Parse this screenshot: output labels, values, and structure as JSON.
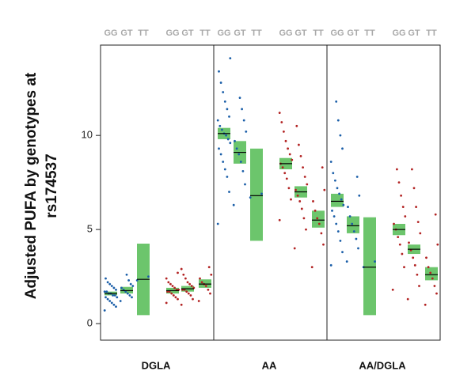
{
  "chart_data": {
    "type": "strip",
    "y_label": [
      "Adjusted PUFA by genotypes at",
      "rs174537"
    ],
    "ylim": [
      -0.88,
      14.8
    ],
    "yticks": [
      0,
      5,
      10
    ],
    "box_color": "#6cc56c",
    "panels": [
      {
        "name": "DGLA",
        "groups": [
          {
            "genotype": "GG",
            "color": "#1a5ea8",
            "mean": 1.6,
            "lower": 1.5,
            "upper": 1.7,
            "points": [
              0.7,
              0.9,
              1.0,
              1.1,
              1.2,
              1.3,
              1.4,
              1.4,
              1.5,
              1.5,
              1.6,
              1.6,
              1.7,
              1.7,
              1.8,
              1.9,
              2.0,
              2.1,
              2.2,
              2.4
            ]
          },
          {
            "genotype": "GT",
            "color": "#1a5ea8",
            "mean": 1.75,
            "lower": 1.6,
            "upper": 1.95,
            "points": [
              1.2,
              1.4,
              1.5,
              1.6,
              1.7,
              1.8,
              1.9,
              2.0,
              2.1,
              2.3,
              2.6
            ]
          },
          {
            "genotype": "TT",
            "color": "#1a5ea8",
            "mean": 2.35,
            "lower": 0.45,
            "upper": 4.25,
            "points": [
              2.3,
              2.5
            ]
          },
          {
            "genotype": "GG",
            "color": "#b22222",
            "mean": 1.75,
            "lower": 1.6,
            "upper": 1.9,
            "points": [
              1.1,
              1.3,
              1.4,
              1.5,
              1.6,
              1.7,
              1.7,
              1.8,
              1.8,
              1.9,
              2.0,
              2.1,
              2.2,
              2.4,
              2.7
            ]
          },
          {
            "genotype": "GT",
            "color": "#b22222",
            "mean": 1.85,
            "lower": 1.7,
            "upper": 2.0,
            "points": [
              1.0,
              1.3,
              1.5,
              1.6,
              1.7,
              1.8,
              1.8,
              1.9,
              2.0,
              2.1,
              2.2,
              2.4,
              2.6,
              2.9
            ]
          },
          {
            "genotype": "TT",
            "color": "#b22222",
            "mean": 2.1,
            "lower": 1.9,
            "upper": 2.35,
            "points": [
              1.2,
              1.6,
              1.8,
              2.0,
              2.1,
              2.2,
              2.4,
              2.6,
              3.0
            ]
          }
        ]
      },
      {
        "name": "AA",
        "groups": [
          {
            "genotype": "GG",
            "color": "#1a5ea8",
            "mean": 10.1,
            "lower": 9.8,
            "upper": 10.4,
            "points": [
              5.3,
              7.0,
              7.8,
              8.2,
              8.6,
              9.0,
              9.3,
              9.6,
              9.8,
              10.0,
              10.1,
              10.3,
              10.5,
              10.8,
              11.0,
              11.4,
              11.8,
              12.3,
              12.8,
              13.4,
              14.1
            ]
          },
          {
            "genotype": "GT",
            "color": "#1a5ea8",
            "mean": 9.1,
            "lower": 8.5,
            "upper": 9.7,
            "points": [
              6.3,
              7.4,
              8.1,
              8.6,
              9.0,
              9.3,
              9.7,
              10.2,
              10.8,
              11.4,
              12.0
            ]
          },
          {
            "genotype": "TT",
            "color": "#1a5ea8",
            "mean": 6.8,
            "lower": 4.4,
            "upper": 9.3,
            "points": [
              6.7,
              6.9
            ]
          },
          {
            "genotype": "GG",
            "color": "#b22222",
            "mean": 8.5,
            "lower": 8.2,
            "upper": 8.8,
            "points": [
              5.5,
              6.6,
              7.2,
              7.7,
              8.0,
              8.3,
              8.5,
              8.7,
              9.0,
              9.3,
              9.7,
              10.2,
              10.7,
              11.2
            ]
          },
          {
            "genotype": "GT",
            "color": "#b22222",
            "mean": 7.0,
            "lower": 6.7,
            "upper": 7.3,
            "points": [
              4.0,
              5.0,
              5.6,
              6.1,
              6.5,
              6.8,
              7.1,
              7.4,
              7.8,
              8.3,
              8.9,
              9.5,
              10.5
            ]
          },
          {
            "genotype": "TT",
            "color": "#b22222",
            "mean": 5.5,
            "lower": 5.1,
            "upper": 6.0,
            "points": [
              3.0,
              4.2,
              4.8,
              5.3,
              5.6,
              6.0,
              6.5,
              7.1,
              8.3
            ]
          }
        ]
      },
      {
        "name": "AA/DGLA",
        "groups": [
          {
            "genotype": "GG",
            "color": "#1a5ea8",
            "mean": 6.5,
            "lower": 6.2,
            "upper": 6.9,
            "points": [
              3.1,
              3.8,
              4.4,
              4.9,
              5.3,
              5.7,
              6.0,
              6.3,
              6.6,
              6.9,
              7.2,
              7.6,
              8.0,
              8.6,
              9.3,
              10.0,
              10.8,
              11.8
            ]
          },
          {
            "genotype": "GT",
            "color": "#1a5ea8",
            "mean": 5.2,
            "lower": 4.8,
            "upper": 5.7,
            "points": [
              3.3,
              4.0,
              4.5,
              4.9,
              5.3,
              5.7,
              6.2,
              6.8,
              7.8
            ]
          },
          {
            "genotype": "TT",
            "color": "#1a5ea8",
            "mean": 3.0,
            "lower": 0.45,
            "upper": 5.65,
            "points": [
              3.0,
              3.3
            ]
          },
          {
            "genotype": "GG",
            "color": "#b22222",
            "mean": 5.0,
            "lower": 4.7,
            "upper": 5.3,
            "points": [
              1.8,
              3.0,
              3.7,
              4.2,
              4.6,
              5.0,
              5.3,
              5.7,
              6.2,
              6.8,
              7.5,
              8.2
            ]
          },
          {
            "genotype": "GT",
            "color": "#b22222",
            "mean": 3.95,
            "lower": 3.7,
            "upper": 4.2,
            "points": [
              1.3,
              2.0,
              2.6,
              3.1,
              3.5,
              3.9,
              4.3,
              4.8,
              5.4,
              6.2,
              7.2,
              8.2
            ]
          },
          {
            "genotype": "TT",
            "color": "#b22222",
            "mean": 2.6,
            "lower": 2.3,
            "upper": 3.0,
            "points": [
              1.0,
              1.6,
              2.0,
              2.4,
              2.7,
              3.0,
              3.5,
              4.2,
              5.8
            ]
          }
        ]
      }
    ]
  }
}
